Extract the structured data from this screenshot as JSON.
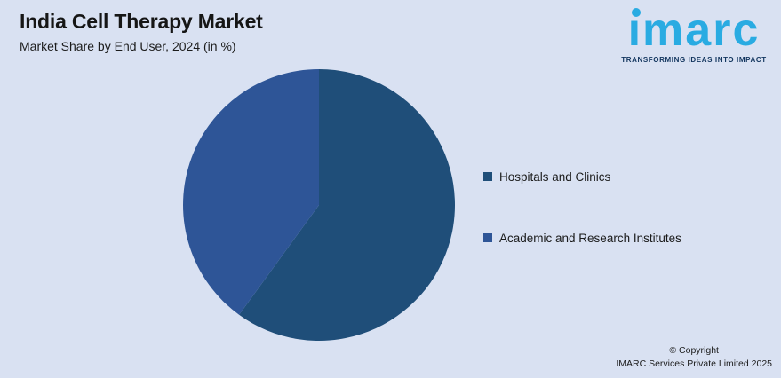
{
  "canvas": {
    "background": "#D9E1F2"
  },
  "header": {
    "title": "India Cell Therapy Market",
    "subtitle": "Market Share by End User, 2024 (in %)"
  },
  "logo": {
    "brand": "imarc",
    "tagline": "TRANSFORMING IDEAS INTO IMPACT",
    "brand_color": "#29ABE2",
    "tagline_color": "#12355E"
  },
  "chart_data": {
    "type": "pie",
    "title": "India Cell Therapy Market",
    "subtitle": "Market Share by End User, 2024 (in %)",
    "labels": [
      "Hospitals and Clinics",
      "Academic and Research Institutes"
    ],
    "values": [
      60,
      40
    ],
    "units": "%",
    "colors": [
      "#1F4E79",
      "#2E5597"
    ],
    "start_angle_deg": 0,
    "direction": "clockwise",
    "legend_position": "right",
    "data_labels_shown": false
  },
  "footer": {
    "copyright_line1": "© Copyright",
    "copyright_line2": "IMARC Services Private Limited 2025"
  }
}
